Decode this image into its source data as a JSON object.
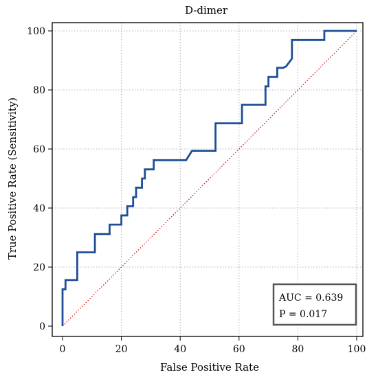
{
  "chart_data": {
    "type": "line",
    "title": "D-dimer",
    "xlabel": "False Positive Rate",
    "ylabel": "True Positive Rate (Sensitivity)",
    "xlim": [
      0,
      100
    ],
    "ylim": [
      0,
      100
    ],
    "xticks": [
      "0",
      "20",
      "40",
      "60",
      "80",
      "100"
    ],
    "yticks": [
      "0",
      "20",
      "40",
      "60",
      "80",
      "100"
    ],
    "grid": true,
    "series": [
      {
        "color": "#1f4e96",
        "style": "solid",
        "x": [
          0,
          0,
          1,
          1,
          5,
          5,
          11,
          11,
          16,
          16,
          20,
          20,
          22,
          22,
          24,
          24,
          25,
          25,
          27,
          27,
          28,
          28,
          31,
          31,
          42,
          44,
          52,
          52,
          61,
          61,
          69,
          69,
          70,
          70,
          73,
          73,
          75,
          76,
          78,
          78,
          87,
          89,
          89,
          100
        ],
        "y": [
          0,
          12.5,
          12.5,
          15.6,
          15.6,
          25,
          25,
          31.2,
          31.2,
          34.4,
          34.4,
          37.5,
          37.5,
          40.6,
          40.6,
          43.7,
          43.7,
          46.9,
          46.9,
          50,
          50,
          53.1,
          53.1,
          56.2,
          56.2,
          59.4,
          59.4,
          68.7,
          68.7,
          75,
          75,
          81.2,
          81.2,
          84.4,
          84.4,
          87.5,
          87.5,
          88,
          90.6,
          96.9,
          96.9,
          96.9,
          100,
          100
        ]
      },
      {
        "color": "#cc0000",
        "style": "dotted",
        "x": [
          0,
          100
        ],
        "y": [
          0,
          100
        ]
      }
    ],
    "annotation": {
      "lines": [
        "AUC = 0.639",
        "P = 0.017"
      ],
      "placement": "bottom-right"
    }
  }
}
